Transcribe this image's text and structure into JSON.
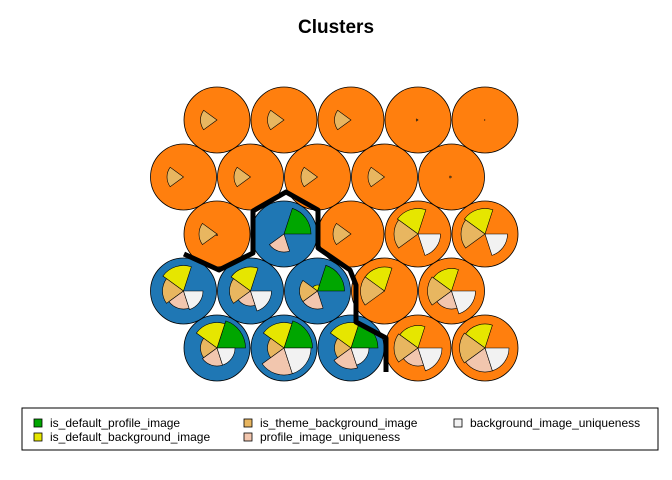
{
  "chart_data": {
    "type": "som-fan-map",
    "title": "Clusters",
    "variables": [
      {
        "name": "is_default_profile_image",
        "color": "#00A600"
      },
      {
        "name": "is_default_background_image",
        "color": "#E6E600"
      },
      {
        "name": "is_theme_background_image",
        "color": "#E8B660"
      },
      {
        "name": "profile_image_uniqueness",
        "color": "#F2C6AE"
      },
      {
        "name": "background_image_uniqueness",
        "color": "#F2F2F2"
      }
    ],
    "cluster_colors": {
      "1": "#FF7F0E",
      "2": "#1F77B4"
    },
    "grid": {
      "rows": 5,
      "cols": 5,
      "topology": "hexagonal"
    },
    "units": [
      {
        "row": 0,
        "col": 0,
        "cluster": 2,
        "values": [
          0.95,
          0.85,
          0.55,
          0.6,
          0.6
        ]
      },
      {
        "row": 0,
        "col": 1,
        "cluster": 2,
        "values": [
          0.95,
          0.85,
          0.55,
          0.9,
          0.9
        ]
      },
      {
        "row": 0,
        "col": 2,
        "cluster": 2,
        "values": [
          0.9,
          0.85,
          0.55,
          0.7,
          0.6
        ]
      },
      {
        "row": 0,
        "col": 3,
        "cluster": 1,
        "values": [
          0.0,
          0.75,
          0.8,
          0.6,
          0.8
        ]
      },
      {
        "row": 0,
        "col": 4,
        "cluster": 1,
        "values": [
          0.0,
          0.8,
          0.85,
          0.8,
          0.8
        ]
      },
      {
        "row": 1,
        "col": 0,
        "cluster": 2,
        "values": [
          0.0,
          0.85,
          0.7,
          0.6,
          0.65
        ]
      },
      {
        "row": 1,
        "col": 1,
        "cluster": 2,
        "values": [
          0.0,
          0.8,
          0.7,
          0.5,
          0.7
        ]
      },
      {
        "row": 1,
        "col": 2,
        "cluster": 2,
        "values": [
          0.9,
          0.2,
          0.6,
          0.6,
          0.0
        ]
      },
      {
        "row": 1,
        "col": 3,
        "cluster": 1,
        "values": [
          0.0,
          0.8,
          0.8,
          0.0,
          0.0
        ]
      },
      {
        "row": 1,
        "col": 4,
        "cluster": 1,
        "values": [
          0.0,
          0.75,
          0.8,
          0.6,
          0.8
        ]
      },
      {
        "row": 2,
        "col": 0,
        "cluster": 1,
        "values": [
          0.0,
          0.0,
          0.6,
          0.05,
          0.0
        ]
      },
      {
        "row": 2,
        "col": 1,
        "cluster": 2,
        "values": [
          0.9,
          0.0,
          0.0,
          0.6,
          0.0
        ]
      },
      {
        "row": 2,
        "col": 2,
        "cluster": 1,
        "values": [
          0.0,
          0.0,
          0.6,
          0.0,
          0.0
        ]
      },
      {
        "row": 2,
        "col": 3,
        "cluster": 1,
        "values": [
          0.0,
          0.85,
          0.8,
          0.0,
          0.75
        ]
      },
      {
        "row": 2,
        "col": 4,
        "cluster": 1,
        "values": [
          0.0,
          0.85,
          0.8,
          0.0,
          0.75
        ]
      },
      {
        "row": 3,
        "col": 0,
        "cluster": 1,
        "values": [
          0.0,
          0.0,
          0.55,
          0.0,
          0.0
        ]
      },
      {
        "row": 3,
        "col": 1,
        "cluster": 1,
        "values": [
          0.0,
          0.0,
          0.55,
          0.0,
          0.0
        ]
      },
      {
        "row": 3,
        "col": 2,
        "cluster": 1,
        "values": [
          0.0,
          0.0,
          0.55,
          0.0,
          0.0
        ]
      },
      {
        "row": 3,
        "col": 3,
        "cluster": 1,
        "values": [
          0.0,
          0.0,
          0.55,
          0.0,
          0.0
        ]
      },
      {
        "row": 3,
        "col": 4,
        "cluster": 1,
        "values": [
          0.0,
          0.0,
          0.06,
          0.0,
          0.0
        ]
      },
      {
        "row": 4,
        "col": 0,
        "cluster": 1,
        "values": [
          0.0,
          0.0,
          0.55,
          0.0,
          0.0
        ]
      },
      {
        "row": 4,
        "col": 1,
        "cluster": 1,
        "values": [
          0.0,
          0.0,
          0.55,
          0.0,
          0.0
        ]
      },
      {
        "row": 4,
        "col": 2,
        "cluster": 1,
        "values": [
          0.0,
          0.0,
          0.55,
          0.0,
          0.0
        ]
      },
      {
        "row": 4,
        "col": 3,
        "cluster": 1,
        "values": [
          0.0,
          0.0,
          0.06,
          0.0,
          0.0
        ]
      },
      {
        "row": 4,
        "col": 4,
        "cluster": 1,
        "values": [
          0.0,
          0.0,
          0.02,
          0.0,
          0.0
        ]
      }
    ],
    "legend_placement": "bottom"
  }
}
